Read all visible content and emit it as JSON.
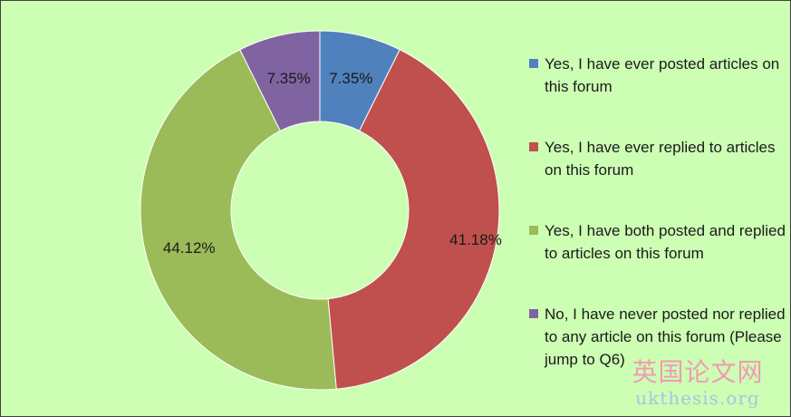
{
  "chart_data": {
    "type": "pie",
    "style": "donut",
    "slices": [
      {
        "label": "Yes, I have ever posted articles on this forum",
        "value": 7.35,
        "data_label": "7.35%",
        "color": "#4f81bd"
      },
      {
        "label": "Yes, I have ever replied to articles on this forum",
        "value": 41.18,
        "data_label": "41.18%",
        "color": "#c0504d"
      },
      {
        "label": "Yes, I have both posted and replied to articles on this forum",
        "value": 44.12,
        "data_label": "44.12%",
        "color": "#9bbb59"
      },
      {
        "label": "No, I have never posted nor replied to any article on this forum (Please jump to Q6)",
        "value": 7.35,
        "data_label": "7.35%",
        "color": "#8064a2"
      }
    ],
    "legend": "right",
    "background": "#ccffb3"
  },
  "watermark": {
    "line1": "英国论文网",
    "line2": "ukthesis.org"
  }
}
